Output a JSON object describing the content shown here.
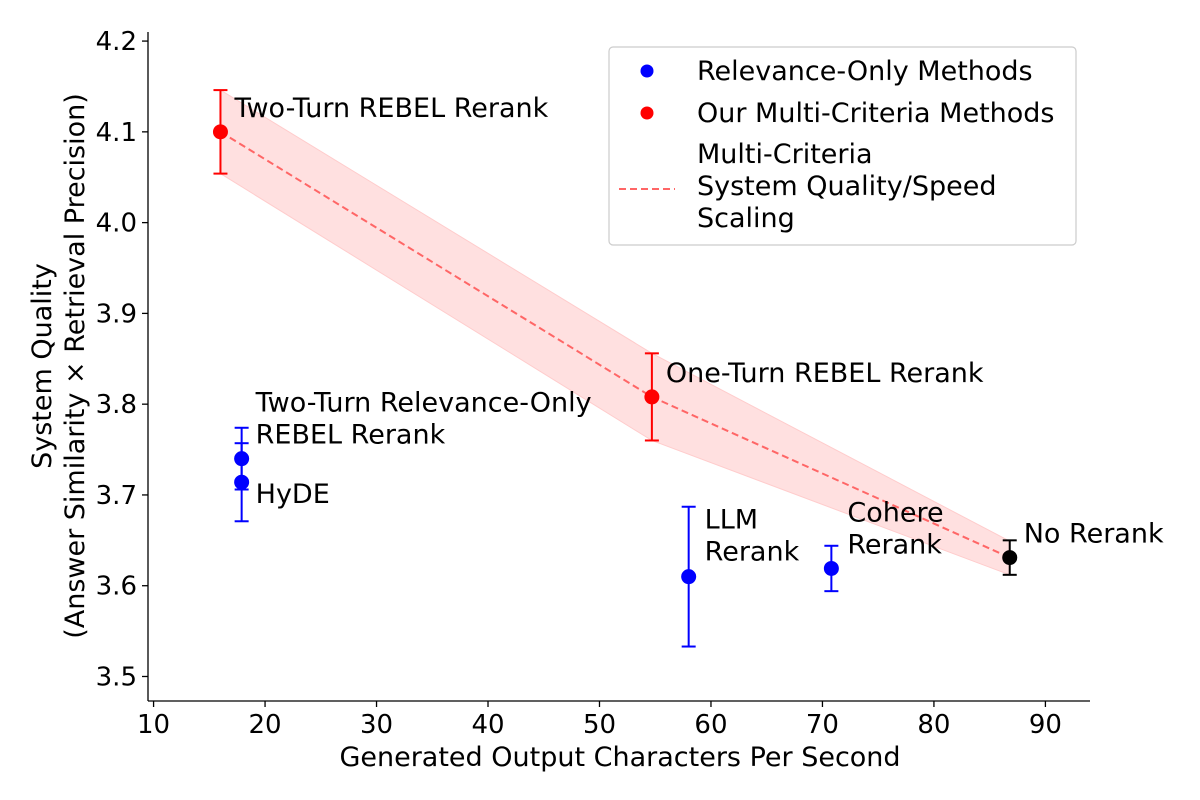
{
  "chart_data": {
    "type": "scatter",
    "title": "",
    "xlabel": "Generated Output Characters Per Second",
    "ylabel_lines": [
      "System Quality",
      "(Answer Similarity × Retrieval Precision)"
    ],
    "xlim": [
      9.5,
      94
    ],
    "ylim": [
      3.473,
      4.21
    ],
    "xticks": [
      10,
      20,
      30,
      40,
      50,
      60,
      70,
      80,
      90
    ],
    "yticks": [
      3.5,
      3.6,
      3.7,
      3.8,
      3.9,
      4.0,
      4.1,
      4.2
    ],
    "colors": {
      "relevance": "#0000ff",
      "multi": "#ff0000",
      "baseline": "#000000",
      "scaling_line": "#ff6666",
      "band": "#ffcccc"
    },
    "points": [
      {
        "id": "two-turn-rebel",
        "label_lines": [
          "Two-Turn REBEL Rerank"
        ],
        "x": 16.0,
        "y": 4.1,
        "err": 0.046,
        "group": "multi"
      },
      {
        "id": "one-turn-rebel",
        "label_lines": [
          "One-Turn REBEL Rerank"
        ],
        "x": 54.7,
        "y": 3.808,
        "err": 0.048,
        "group": "multi"
      },
      {
        "id": "two-turn-relevance-only",
        "label_lines": [
          "Two-Turn Relevance-Only",
          "REBEL Rerank"
        ],
        "x": 17.9,
        "y": 3.74,
        "err": 0.034,
        "group": "relevance"
      },
      {
        "id": "hyde",
        "label_lines": [
          "HyDE"
        ],
        "x": 17.9,
        "y": 3.714,
        "err": 0.043,
        "group": "relevance"
      },
      {
        "id": "llm-rerank",
        "label_lines": [
          "LLM",
          "Rerank"
        ],
        "x": 58.0,
        "y": 3.61,
        "err": 0.077,
        "group": "relevance"
      },
      {
        "id": "cohere-rerank",
        "label_lines": [
          "Cohere",
          "Rerank"
        ],
        "x": 70.8,
        "y": 3.619,
        "err": 0.025,
        "group": "relevance"
      },
      {
        "id": "no-rerank",
        "label_lines": [
          "No Rerank"
        ],
        "x": 86.8,
        "y": 3.631,
        "err": 0.019,
        "group": "baseline"
      }
    ],
    "scaling_curve": {
      "x": [
        16.0,
        54.7,
        86.8
      ],
      "y": [
        4.1,
        3.808,
        3.631
      ],
      "band_upper": [
        4.146,
        3.856,
        3.649
      ],
      "band_lower": [
        4.054,
        3.76,
        3.612
      ]
    },
    "legend": {
      "position": "top-right",
      "entries": [
        {
          "label_lines": [
            "Relevance-Only Methods"
          ],
          "marker": "dot",
          "color_key": "relevance"
        },
        {
          "label_lines": [
            "Our Multi-Criteria Methods"
          ],
          "marker": "dot",
          "color_key": "multi"
        },
        {
          "label_lines": [
            "Multi-Criteria",
            "System Quality/Speed",
            "Scaling"
          ],
          "marker": "dashed-line",
          "color_key": "scaling_line"
        }
      ]
    }
  }
}
